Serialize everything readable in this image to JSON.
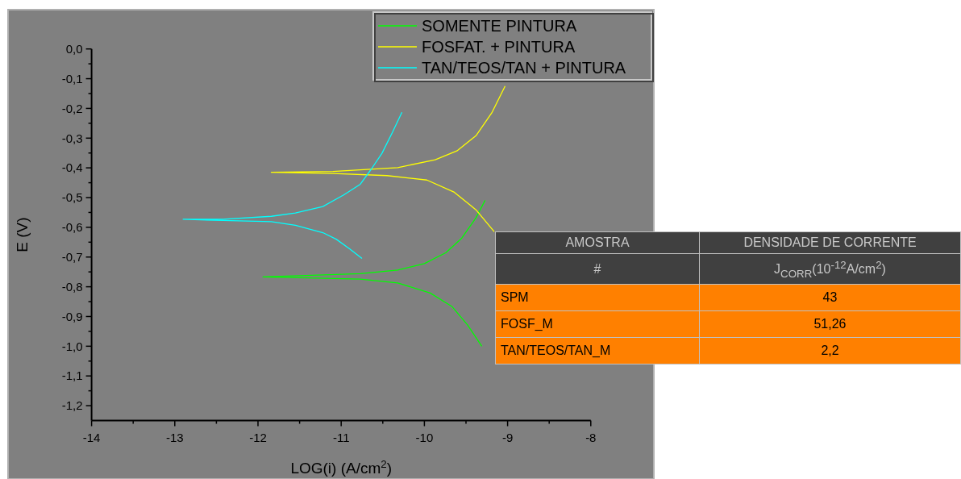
{
  "chart_data": [
    {
      "type": "line",
      "xlabel": "LOG(i) (A/cm$^{2}$)",
      "ylabel": "E (V)",
      "xlim": [
        -14,
        -8
      ],
      "ylim": [
        -1.25,
        0
      ],
      "xticks": [
        -14,
        {
          "value": -13.5,
          "label": null
        },
        -13,
        {
          "value": -12.5,
          "label": null
        },
        -12,
        {
          "value": -11.5,
          "label": null
        },
        -11,
        {
          "value": -10.5,
          "label": null
        },
        -10,
        {
          "value": -9.5,
          "label": null
        },
        -9,
        {
          "value": -8.5,
          "label": null
        },
        -8
      ],
      "yticks": [
        {
          "value": -1.2,
          "label": "-1,2"
        },
        {
          "value": -1.15,
          "label": null
        },
        {
          "value": -1.1,
          "label": "-1,1"
        },
        {
          "value": -1.05,
          "label": null
        },
        {
          "value": -1.0,
          "label": "-1,0"
        },
        {
          "value": -0.95,
          "label": null
        },
        {
          "value": -0.9,
          "label": "-0,9"
        },
        {
          "value": -0.85,
          "label": null
        },
        {
          "value": -0.8,
          "label": "-0,8"
        },
        {
          "value": -0.75,
          "label": null
        },
        {
          "value": -0.7,
          "label": "-0,7"
        },
        {
          "value": -0.65,
          "label": null
        },
        {
          "value": -0.6,
          "label": "-0,6"
        },
        {
          "value": -0.55,
          "label": null
        },
        {
          "value": -0.5,
          "label": "-0,5"
        },
        {
          "value": -0.45,
          "label": null
        },
        {
          "value": -0.4,
          "label": "-0,4"
        },
        {
          "value": -0.35,
          "label": null
        },
        {
          "value": -0.3,
          "label": "-0,3"
        },
        {
          "value": -0.25,
          "label": null
        },
        {
          "value": -0.2,
          "label": "-0,2"
        },
        {
          "value": -0.15,
          "label": null
        },
        {
          "value": -0.1,
          "label": "-0,1"
        },
        {
          "value": -0.05,
          "label": null
        },
        {
          "value": 0,
          "label": "0,0"
        }
      ],
      "grid": false,
      "legend": "top right",
      "line_style": "solid",
      "series": [
        {
          "name": "SOMENTE PINTURA",
          "color": "#00ff00",
          "x": [
            -9.31,
            -9.48,
            -9.67,
            -9.93,
            -10.32,
            -10.77,
            -11.94,
            -10.77,
            -10.32,
            -10.0,
            -9.74,
            -9.55,
            -9.38,
            -9.27
          ],
          "values": [
            -1.0,
            -0.929,
            -0.866,
            -0.821,
            -0.787,
            -0.774,
            -0.767,
            -0.756,
            -0.744,
            -0.722,
            -0.685,
            -0.636,
            -0.568,
            -0.509
          ]
        },
        {
          "name": "FOSFAT. + PINTURA",
          "color": "#ffff00",
          "x": [
            -9.16,
            -9.38,
            -9.64,
            -9.97,
            -10.45,
            -11.1,
            -11.84,
            -11.1,
            -10.32,
            -9.87,
            -9.61,
            -9.38,
            -9.19,
            -9.03
          ],
          "values": [
            -0.615,
            -0.541,
            -0.482,
            -0.441,
            -0.426,
            -0.419,
            -0.415,
            -0.412,
            -0.399,
            -0.373,
            -0.343,
            -0.292,
            -0.215,
            -0.125
          ]
        },
        {
          "name": "TAN/TEOS/TAN + PINTURA",
          "color": "#00ffff",
          "x": [
            -10.75,
            -10.9,
            -11.06,
            -11.22,
            -11.55,
            -11.84,
            -12.42,
            -12.9,
            -12.42,
            -11.84,
            -11.55,
            -11.22,
            -10.97,
            -10.77,
            -10.64,
            -10.51,
            -10.38,
            -10.27
          ],
          "values": [
            -0.705,
            -0.672,
            -0.64,
            -0.618,
            -0.593,
            -0.581,
            -0.577,
            -0.573,
            -0.573,
            -0.563,
            -0.552,
            -0.53,
            -0.491,
            -0.455,
            -0.405,
            -0.351,
            -0.278,
            -0.213
          ]
        }
      ]
    },
    {
      "type": "other",
      "annotations": [
        "AMOSTRA",
        "DENSIDADE DE CORRENTE",
        "#",
        "J$_{CORR}$(10$^{-12}$A/cm$^{2}$)"
      ],
      "categories": [
        "SPM",
        "FOSF_M",
        "TAN/TEOS/TAN_M"
      ],
      "value_labels": [
        "43",
        "51,26",
        "2,2"
      ]
    }
  ]
}
